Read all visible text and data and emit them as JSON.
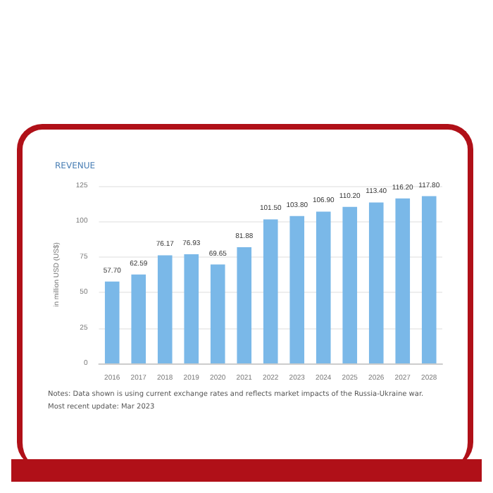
{
  "chart_data": {
    "type": "bar",
    "title": "REVENUE",
    "ylabel": "in million USD (US$)",
    "categories": [
      "2016",
      "2017",
      "2018",
      "2019",
      "2020",
      "2021",
      "2022",
      "2023",
      "2024",
      "2025",
      "2026",
      "2027",
      "2028"
    ],
    "values": [
      57.7,
      62.59,
      76.17,
      76.93,
      69.65,
      81.88,
      101.5,
      103.8,
      106.9,
      110.2,
      113.4,
      116.2,
      117.8
    ],
    "value_labels": [
      "57.70",
      "62.59",
      "76.17",
      "76.93",
      "69.65",
      "81.88",
      "101.50",
      "103.80",
      "106.90",
      "110.20",
      "113.40",
      "116.20",
      "117.80"
    ],
    "color": "#7ab8e8",
    "ylim": [
      0,
      125
    ],
    "yticks": [
      0,
      25,
      50,
      75,
      100,
      125
    ],
    "grid": "y",
    "annotations": [
      "Notes: Data shown is using current exchange rates and reflects market impacts of the Russia-Ukraine war.",
      "Most recent update: Mar 2023"
    ]
  }
}
